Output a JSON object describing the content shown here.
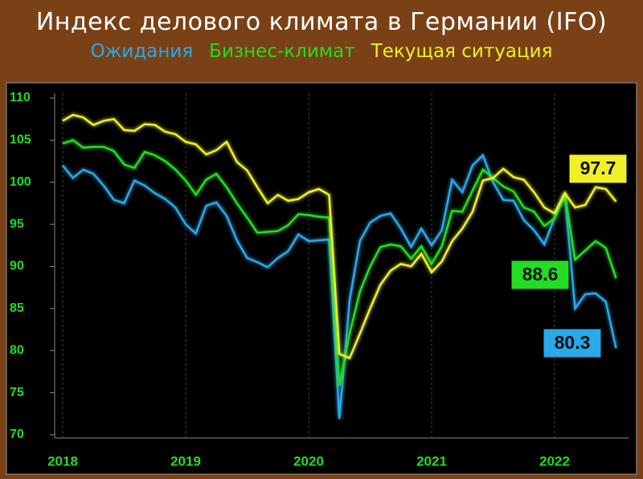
{
  "chart_data": {
    "type": "line",
    "title": "Индекс делового климата в Германии (IFO)",
    "categories": [
      "2018",
      null,
      null,
      null,
      null,
      null,
      null,
      null,
      null,
      null,
      null,
      null,
      "2019",
      null,
      null,
      null,
      null,
      null,
      null,
      null,
      null,
      null,
      null,
      null,
      "2020",
      null,
      null,
      null,
      null,
      null,
      null,
      null,
      null,
      null,
      null,
      null,
      "2021",
      null,
      null,
      null,
      null,
      null,
      null,
      null,
      null,
      null,
      null,
      null,
      "2022",
      null,
      null,
      null,
      null,
      null,
      null
    ],
    "series": [
      {
        "name": "Ожидания",
        "color": "#2aa8e8",
        "values": [
          102.0,
          100.5,
          101.5,
          101.0,
          99.6,
          97.9,
          97.5,
          100.2,
          99.6,
          98.7,
          98.0,
          97.0,
          95.0,
          93.9,
          97.2,
          97.6,
          96.0,
          93.1,
          91.0,
          90.5,
          89.9,
          91.0,
          91.8,
          93.8,
          93.0,
          93.1,
          93.2,
          71.9,
          86.0,
          93.0,
          95.2,
          96.0,
          96.3,
          94.5,
          92.3,
          94.5,
          92.5,
          94.3,
          100.3,
          98.8,
          102.0,
          103.2,
          100.0,
          97.9,
          97.8,
          95.5,
          94.3,
          92.6,
          95.8,
          98.6,
          85.0,
          86.7,
          86.8,
          85.8,
          80.3
        ]
      },
      {
        "name": "Бизнес-климат",
        "color": "#22dd22",
        "values": [
          104.6,
          105.0,
          104.1,
          104.2,
          104.2,
          103.7,
          102.1,
          101.7,
          103.6,
          103.2,
          102.5,
          101.5,
          100.2,
          98.5,
          100.3,
          101.0,
          99.4,
          97.5,
          95.8,
          94.0,
          94.1,
          94.2,
          94.9,
          96.2,
          96.1,
          95.9,
          95.8,
          75.8,
          82.0,
          87.0,
          90.0,
          92.3,
          92.6,
          92.4,
          90.9,
          92.4,
          90.3,
          92.4,
          96.6,
          96.5,
          99.0,
          101.5,
          100.5,
          99.5,
          98.9,
          97.0,
          96.5,
          94.8,
          95.7,
          98.6,
          90.8,
          91.9,
          93.0,
          92.2,
          88.6
        ]
      },
      {
        "name": "Текущая ситуация",
        "color": "#f0f028",
        "values": [
          107.3,
          108.0,
          107.7,
          106.8,
          107.3,
          107.5,
          106.2,
          106.1,
          106.9,
          106.8,
          106.0,
          105.7,
          104.8,
          104.5,
          103.3,
          103.8,
          104.8,
          102.4,
          101.4,
          99.4,
          97.5,
          98.5,
          97.8,
          98.0,
          98.8,
          99.2,
          98.5,
          79.6,
          79.1,
          82.0,
          85.0,
          87.8,
          89.5,
          90.3,
          90.0,
          91.5,
          89.3,
          90.6,
          93.0,
          94.5,
          96.5,
          100.2,
          100.5,
          101.6,
          100.6,
          100.3,
          98.8,
          97.0,
          96.3,
          98.7,
          97.0,
          97.3,
          99.4,
          99.2,
          97.7
        ]
      }
    ],
    "ylim": [
      70,
      110
    ],
    "yticks": [
      70,
      75,
      80,
      85,
      90,
      95,
      100,
      105,
      110
    ],
    "grid": true
  }
}
